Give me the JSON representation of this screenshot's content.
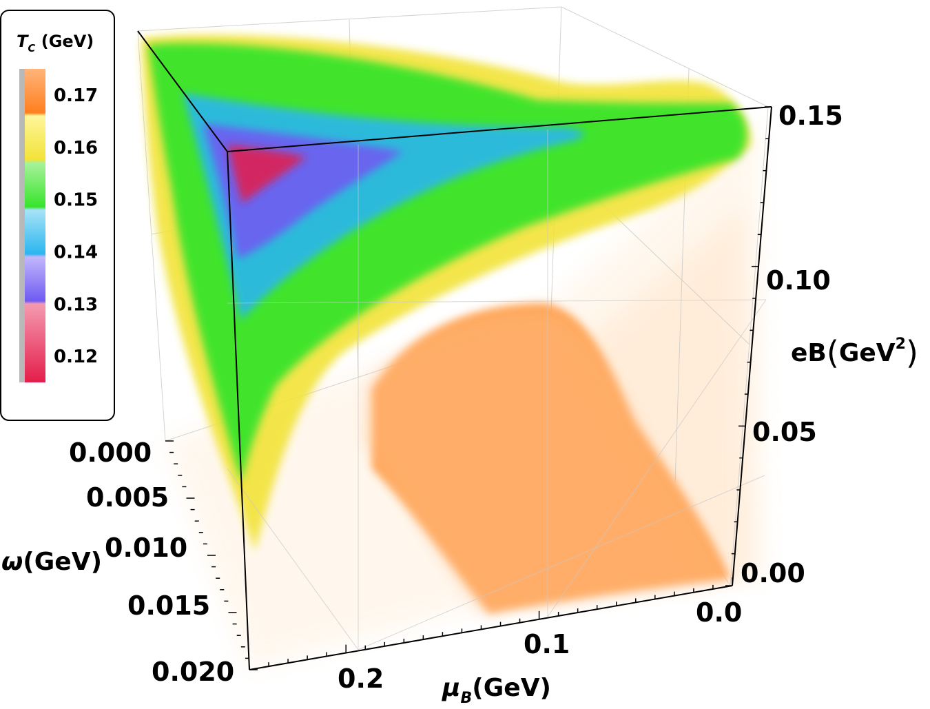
{
  "chart_data": {
    "type": "heatmap",
    "subtype": "3d-density",
    "legend": {
      "title_main": "T",
      "title_sub": "C",
      "title_unit": " (GeV)",
      "placement": "top-left",
      "entries": [
        {
          "label": "0.17",
          "color": "#ff8a2a",
          "light": "#ffb47a"
        },
        {
          "label": "0.16",
          "color": "#f2e338",
          "light": "#fff59b"
        },
        {
          "label": "0.15",
          "color": "#37e42c",
          "light": "#a8f29a"
        },
        {
          "label": "0.14",
          "color": "#2ab6ef",
          "light": "#a8e3f7"
        },
        {
          "label": "0.13",
          "color": "#6f5bf2",
          "light": "#c2b7fb"
        },
        {
          "label": "0.12",
          "color": "#e41d4a",
          "light": "#f59ab0"
        }
      ]
    },
    "axes": {
      "eB": {
        "label_main": "eB",
        "label_open": "(",
        "label_unit": "GeV",
        "label_power": "2",
        "label_close": ")",
        "ticks": [
          "0.00",
          "0.05",
          "0.10",
          "0.15"
        ],
        "range": [
          0,
          0.15
        ]
      },
      "mu": {
        "label_main": "μ",
        "label_sub": "B",
        "label_unit": "(GeV)",
        "ticks": [
          "0.0",
          "0.1",
          "0.2"
        ],
        "range": [
          0,
          0.25
        ]
      },
      "omega": {
        "label_main": "ω",
        "label_unit": "(GeV)",
        "ticks": [
          "0.000",
          "0.005",
          "0.010",
          "0.015",
          "0.020"
        ],
        "range": [
          0,
          0.02
        ]
      }
    },
    "regions": [
      {
        "tc": 0.165,
        "color": "#ff9f4c",
        "description_level": "orange bulk at low eB, moderate μB"
      },
      {
        "tc": 0.16,
        "color": "#f2e338",
        "level": "yellow band"
      },
      {
        "tc": 0.15,
        "color": "#37e42c",
        "level": "green band"
      },
      {
        "tc": 0.14,
        "color": "#2ab6ef",
        "level": "cyan band"
      },
      {
        "tc": 0.13,
        "color": "#6f5bf2",
        "level": "violet band"
      },
      {
        "tc": 0.12,
        "color": "#e41d4a",
        "level": "red core at high eB, high μB, ω=0"
      }
    ],
    "grid": true
  }
}
